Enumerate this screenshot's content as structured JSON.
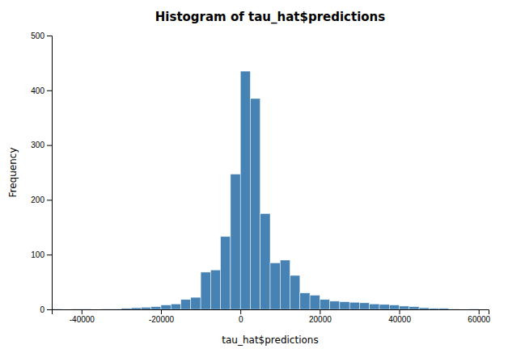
{
  "chart_data": {
    "type": "histogram",
    "title": "Histogram of tau_hat$predictions",
    "xlabel": "tau_hat$predictions",
    "ylabel": "Frequency",
    "bins": [
      -47500,
      -45000,
      -42500,
      -40000,
      -37500,
      -35000,
      -32500,
      -30000,
      -27500,
      -25000,
      -22500,
      -20000,
      -17500,
      -15000,
      -12500,
      -10000,
      -7500,
      -5000,
      -2500,
      0,
      2500,
      5000,
      7500,
      10000,
      12500,
      15000,
      17500,
      20000,
      22500,
      25000,
      27500,
      30000,
      32500,
      35000,
      37500,
      40000,
      42500,
      45000,
      47500,
      50000,
      52500,
      55000,
      57500,
      60000
    ],
    "values": [
      1,
      0,
      1,
      1,
      0,
      1,
      1,
      2,
      3,
      4,
      5,
      8,
      10,
      18,
      22,
      68,
      72,
      133,
      247,
      435,
      385,
      175,
      85,
      90,
      62,
      30,
      26,
      18,
      15,
      14,
      13,
      12,
      10,
      9,
      8,
      6,
      5,
      3,
      2,
      2,
      1,
      0,
      1
    ],
    "xlim": [
      -47500,
      62500
    ],
    "ylim": [
      0,
      500
    ],
    "xticks": [
      -40000,
      -20000,
      0,
      20000,
      40000,
      60000
    ],
    "yticks": [
      0,
      100,
      200,
      300,
      400,
      500
    ],
    "grid": false
  }
}
